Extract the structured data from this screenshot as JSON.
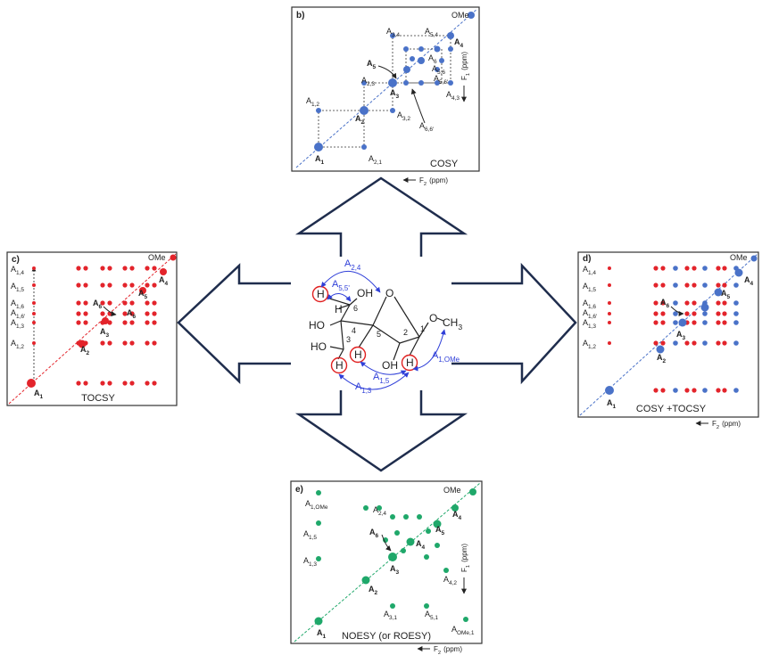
{
  "center": {
    "atoms": [
      "H",
      "H",
      "OH",
      "6",
      "HO",
      "4",
      "5",
      "O",
      "2",
      "1",
      "O",
      {
        "main": "CH",
        "sub": "3"
      },
      "HO",
      "3",
      "OH",
      "H",
      "H",
      "H"
    ],
    "couplings": [
      {
        "main": "A",
        "sub": "2,4"
      },
      {
        "main": "A",
        "sub": "5,5'"
      },
      {
        "main": "A",
        "sub": "1,5"
      },
      {
        "main": "A",
        "sub": "1,3"
      },
      {
        "main": "A",
        "sub": "1,OMe"
      }
    ]
  },
  "panels": [
    {
      "letter": "b)",
      "title": "COSY",
      "labels": [
        "OMe",
        {
          "main": "A",
          "sub": "3,4"
        },
        {
          "main": "A",
          "sub": "5,4"
        },
        {
          "main": "A",
          "sub": "4"
        },
        {
          "main": "A",
          "sub": "6"
        },
        {
          "main": "A",
          "sub": "5,6"
        },
        {
          "main": "A",
          "sub": "5,6'"
        },
        {
          "main": "A",
          "sub": "5"
        },
        {
          "main": "A",
          "sub": "2,3"
        },
        {
          "main": "A",
          "sub": "3"
        },
        {
          "main": "A",
          "sub": "4,3"
        },
        {
          "main": "A",
          "sub": "1,2"
        },
        {
          "main": "A",
          "sub": "2"
        },
        {
          "main": "A",
          "sub": "3,2"
        },
        {
          "main": "A",
          "sub": "6,6'"
        },
        {
          "main": "A",
          "sub": "1"
        },
        {
          "main": "A",
          "sub": "2,1"
        }
      ],
      "f1": {
        "main": "F",
        "sub": "1",
        "rest": "(ppm)"
      },
      "f2": {
        "main": "F",
        "sub": "2",
        "rest": "(ppm)"
      }
    },
    {
      "letter": "c)",
      "title": "TOCSY",
      "labels": [
        "OMe",
        {
          "main": "A",
          "sub": "1,4"
        },
        {
          "main": "A",
          "sub": "1,5"
        },
        {
          "main": "A",
          "sub": "1,6"
        },
        {
          "main": "A",
          "sub": "1,6'"
        },
        {
          "main": "A",
          "sub": "1,3"
        },
        {
          "main": "A",
          "sub": "1,2"
        },
        {
          "main": "A",
          "sub": "4"
        },
        {
          "main": "A",
          "sub": "5"
        },
        {
          "main": "A",
          "sub": "6"
        },
        {
          "main": "A",
          "sub": "6"
        },
        {
          "main": "A",
          "sub": "3"
        },
        {
          "main": "A",
          "sub": "2"
        },
        {
          "main": "A",
          "sub": "1"
        }
      ]
    },
    {
      "letter": "d)",
      "title": "COSY +TOCSY",
      "labels": [
        "OMe",
        {
          "main": "A",
          "sub": "1,4"
        },
        {
          "main": "A",
          "sub": "1,5"
        },
        {
          "main": "A",
          "sub": "1,6"
        },
        {
          "main": "A",
          "sub": "1,6'"
        },
        {
          "main": "A",
          "sub": "1,3"
        },
        {
          "main": "A",
          "sub": "1,2"
        },
        {
          "main": "A",
          "sub": "4"
        },
        {
          "main": "A",
          "sub": "5"
        },
        {
          "main": "A",
          "sub": "6"
        },
        {
          "main": "A",
          "sub": "3"
        },
        {
          "main": "A",
          "sub": "2"
        },
        {
          "main": "A",
          "sub": "1"
        }
      ],
      "f2": {
        "main": "F",
        "sub": "2",
        "rest": "(ppm)"
      }
    },
    {
      "letter": "e)",
      "title": "NOESY (or ROESY)",
      "labels": [
        "OMe",
        {
          "main": "A",
          "sub": "1,OMe"
        },
        {
          "main": "A",
          "sub": "2,4"
        },
        {
          "main": "A",
          "sub": "4"
        },
        {
          "main": "A",
          "sub": "1,5"
        },
        {
          "main": "A",
          "sub": "6"
        },
        {
          "main": "A",
          "sub": "5"
        },
        {
          "main": "A",
          "sub": "4"
        },
        {
          "main": "A",
          "sub": "1,3"
        },
        {
          "main": "A",
          "sub": "3"
        },
        {
          "main": "A",
          "sub": "2"
        },
        {
          "main": "A",
          "sub": "4,2"
        },
        {
          "main": "A",
          "sub": "3,1"
        },
        {
          "main": "A",
          "sub": "5,1"
        },
        {
          "main": "A",
          "sub": "OMe,1"
        },
        {
          "main": "A",
          "sub": "1"
        }
      ],
      "f1": {
        "main": "F",
        "sub": "1",
        "rest": "(ppm)"
      },
      "f2": {
        "main": "F",
        "sub": "2",
        "rest": "(ppm)"
      }
    }
  ]
}
